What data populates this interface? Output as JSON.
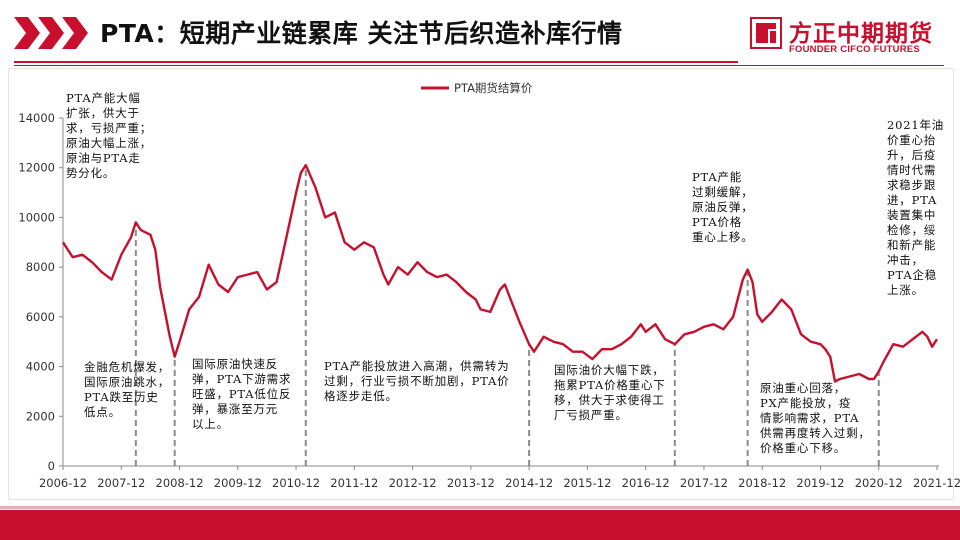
{
  "page": {
    "title": "PTA：短期产业链累库 关注节后织造补库行情",
    "brand_cn": "方正中期期货",
    "brand_en": "FOUNDER CIFCO FUTURES",
    "accent": "#c8102e"
  },
  "chart_data": {
    "type": "line",
    "series": [
      {
        "name": "PTA期货结算价",
        "color": "#c8102e",
        "points": [
          [
            "2006-12",
            9000
          ],
          [
            "2007-02",
            8400
          ],
          [
            "2007-04",
            8500
          ],
          [
            "2007-06",
            8200
          ],
          [
            "2007-08",
            7800
          ],
          [
            "2007-10",
            7500
          ],
          [
            "2007-12",
            8500
          ],
          [
            "2008-02",
            9200
          ],
          [
            "2008-03",
            9800
          ],
          [
            "2008-04",
            9500
          ],
          [
            "2008-06",
            9300
          ],
          [
            "2008-07",
            8700
          ],
          [
            "2008-08",
            7200
          ],
          [
            "2008-10",
            5200
          ],
          [
            "2008-11",
            4400
          ],
          [
            "2008-12",
            5000
          ],
          [
            "2009-02",
            6300
          ],
          [
            "2009-04",
            6800
          ],
          [
            "2009-06",
            8100
          ],
          [
            "2009-08",
            7300
          ],
          [
            "2009-10",
            7000
          ],
          [
            "2009-12",
            7600
          ],
          [
            "2010-02",
            7700
          ],
          [
            "2010-04",
            7800
          ],
          [
            "2010-06",
            7100
          ],
          [
            "2010-08",
            7400
          ],
          [
            "2010-10",
            9200
          ],
          [
            "2010-12",
            11000
          ],
          [
            "2011-01",
            11800
          ],
          [
            "2011-02",
            12100
          ],
          [
            "2011-04",
            11200
          ],
          [
            "2011-06",
            10000
          ],
          [
            "2011-08",
            10200
          ],
          [
            "2011-10",
            9000
          ],
          [
            "2011-12",
            8700
          ],
          [
            "2012-02",
            9000
          ],
          [
            "2012-04",
            8800
          ],
          [
            "2012-06",
            7700
          ],
          [
            "2012-07",
            7300
          ],
          [
            "2012-09",
            8000
          ],
          [
            "2012-11",
            7700
          ],
          [
            "2013-01",
            8200
          ],
          [
            "2013-03",
            7800
          ],
          [
            "2013-05",
            7600
          ],
          [
            "2013-07",
            7700
          ],
          [
            "2013-09",
            7400
          ],
          [
            "2013-11",
            7000
          ],
          [
            "2014-01",
            6700
          ],
          [
            "2014-02",
            6300
          ],
          [
            "2014-04",
            6200
          ],
          [
            "2014-06",
            7100
          ],
          [
            "2014-07",
            7300
          ],
          [
            "2014-08",
            6800
          ],
          [
            "2014-10",
            5800
          ],
          [
            "2014-12",
            4900
          ],
          [
            "2015-01",
            4600
          ],
          [
            "2015-03",
            5200
          ],
          [
            "2015-05",
            5000
          ],
          [
            "2015-07",
            4900
          ],
          [
            "2015-09",
            4600
          ],
          [
            "2015-11",
            4600
          ],
          [
            "2016-01",
            4300
          ],
          [
            "2016-03",
            4700
          ],
          [
            "2016-05",
            4700
          ],
          [
            "2016-07",
            4900
          ],
          [
            "2016-09",
            5200
          ],
          [
            "2016-11",
            5700
          ],
          [
            "2016-12",
            5400
          ],
          [
            "2017-02",
            5700
          ],
          [
            "2017-04",
            5100
          ],
          [
            "2017-06",
            4900
          ],
          [
            "2017-08",
            5300
          ],
          [
            "2017-10",
            5400
          ],
          [
            "2017-12",
            5600
          ],
          [
            "2018-02",
            5700
          ],
          [
            "2018-04",
            5500
          ],
          [
            "2018-06",
            6000
          ],
          [
            "2018-08",
            7500
          ],
          [
            "2018-09",
            7900
          ],
          [
            "2018-10",
            7400
          ],
          [
            "2018-11",
            6100
          ],
          [
            "2018-12",
            5800
          ],
          [
            "2019-02",
            6200
          ],
          [
            "2019-04",
            6700
          ],
          [
            "2019-06",
            6300
          ],
          [
            "2019-08",
            5300
          ],
          [
            "2019-10",
            5000
          ],
          [
            "2019-12",
            4900
          ],
          [
            "2020-01",
            4700
          ],
          [
            "2020-02",
            4400
          ],
          [
            "2020-03",
            3400
          ],
          [
            "2020-04",
            3500
          ],
          [
            "2020-06",
            3600
          ],
          [
            "2020-08",
            3700
          ],
          [
            "2020-10",
            3500
          ],
          [
            "2020-11",
            3500
          ],
          [
            "2020-12",
            3800
          ],
          [
            "2021-01",
            4200
          ],
          [
            "2021-03",
            4900
          ],
          [
            "2021-05",
            4800
          ],
          [
            "2021-07",
            5100
          ],
          [
            "2021-09",
            5400
          ],
          [
            "2021-10",
            5200
          ],
          [
            "2021-11",
            4800
          ],
          [
            "2021-12",
            5100
          ]
        ]
      }
    ],
    "ylim": [
      0,
      14000
    ],
    "yticks": [
      "0",
      "2000",
      "4000",
      "6000",
      "8000",
      "10000",
      "12000",
      "14000"
    ],
    "xlim": [
      "2006-12",
      "2021-12"
    ],
    "xticks": [
      "2006-12",
      "2007-12",
      "2008-12",
      "2009-12",
      "2010-12",
      "2011-12",
      "2012-12",
      "2013-12",
      "2014-12",
      "2015-12",
      "2016-12",
      "2017-12",
      "2018-12",
      "2019-12",
      "2020-12",
      "2021-12"
    ],
    "legend": {
      "placement": "top-center"
    },
    "grid": false,
    "divider_dates": [
      "2008-03",
      "2008-11",
      "2011-02",
      "2014-12",
      "2017-06",
      "2018-09",
      "2020-12"
    ],
    "annotations": [
      {
        "id": "a1",
        "lines": [
          "PTA产能大幅",
          "扩张，供大于",
          "求，亏损严重；",
          "原油大幅上涨，",
          "原油与PTA走",
          "势分化。"
        ]
      },
      {
        "id": "a2",
        "lines": [
          "金融危机爆发，",
          "国际原油跳水，",
          "PTA跌至历史",
          "低点。"
        ]
      },
      {
        "id": "a3",
        "lines": [
          "国际原油快速反",
          "弹，PTA下游需求",
          "旺盛，PTA低位反",
          "弹，暴涨至万元",
          "以上。"
        ]
      },
      {
        "id": "a4",
        "lines": [
          "PTA产能投放进入高潮，供需转为",
          "过剩，行业亏损不断加剧，PTA价",
          "格逐步走低。"
        ]
      },
      {
        "id": "a5",
        "lines": [
          "国际油价大幅下跌，",
          "拖累PTA价格重心下",
          "移，供大于求使得工",
          "厂亏损严重。"
        ]
      },
      {
        "id": "a6",
        "lines": [
          "PTA产能",
          "过剩缓解，",
          "原油反弹，",
          "PTA价格",
          "重心上移。"
        ]
      },
      {
        "id": "a7",
        "lines": [
          "原油重心回落，",
          "PX产能投放，疫",
          "情影响需求，PTA",
          "供需再度转入过剩，",
          "价格重心下移。"
        ]
      },
      {
        "id": "a8",
        "lines": [
          "2021年油",
          "价重心抬",
          "升，后疫",
          "情时代需",
          "求稳步跟",
          "进，PTA",
          "装置集中",
          "检修，绥",
          "和新产能",
          "冲击，",
          "PTA企稳",
          "上涨。"
        ]
      }
    ]
  }
}
